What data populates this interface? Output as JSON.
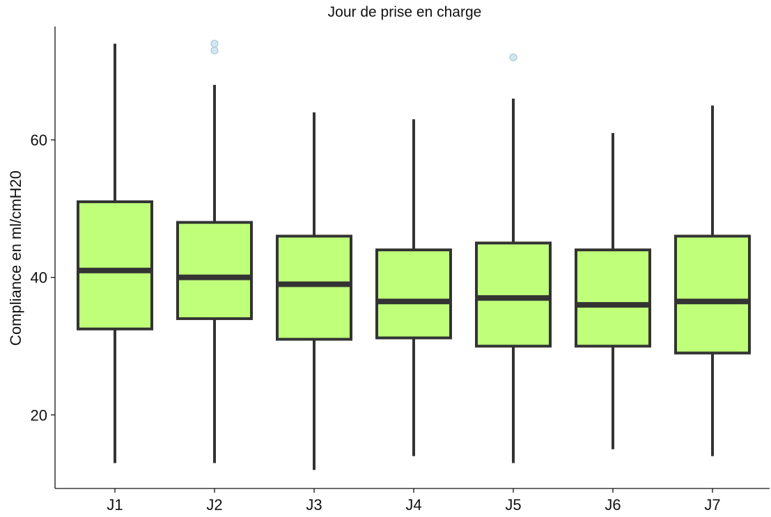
{
  "chart_data": {
    "type": "boxplot",
    "title": "Jour de prise en charge",
    "xlabel": "",
    "ylabel": "Compliance en ml/cmH20",
    "ylim": [
      9.3,
      76.5
    ],
    "yticks": [
      20,
      40,
      60
    ],
    "grid": false,
    "legend": "none",
    "categories": [
      "J1",
      "J2",
      "J3",
      "J4",
      "J5",
      "J6",
      "J7"
    ],
    "boxes": [
      {
        "label": "J1",
        "whisker_low": 13,
        "q1": 32.5,
        "median": 41,
        "q3": 51,
        "whisker_high": 74,
        "outliers": []
      },
      {
        "label": "J2",
        "whisker_low": 13,
        "q1": 34,
        "median": 40,
        "q3": 48,
        "whisker_high": 68,
        "outliers": [
          73,
          74
        ]
      },
      {
        "label": "J3",
        "whisker_low": 12,
        "q1": 31,
        "median": 39,
        "q3": 46,
        "whisker_high": 64,
        "outliers": []
      },
      {
        "label": "J4",
        "whisker_low": 14,
        "q1": 31.2,
        "median": 36.5,
        "q3": 44,
        "whisker_high": 63,
        "outliers": []
      },
      {
        "label": "J5",
        "whisker_low": 13,
        "q1": 30,
        "median": 37,
        "q3": 45,
        "whisker_high": 66,
        "outliers": [
          72
        ]
      },
      {
        "label": "J6",
        "whisker_low": 15,
        "q1": 30,
        "median": 36,
        "q3": 44,
        "whisker_high": 61,
        "outliers": []
      },
      {
        "label": "J7",
        "whisker_low": 14,
        "q1": 29,
        "median": 36.5,
        "q3": 46,
        "whisker_high": 65,
        "outliers": []
      }
    ],
    "colors": {
      "box_fill": "#bfff7a",
      "box_stroke": "#333333",
      "outlier_fill": "#d2e8f0",
      "outlier_stroke": "#a9c8d4",
      "axis": "#111111"
    }
  }
}
